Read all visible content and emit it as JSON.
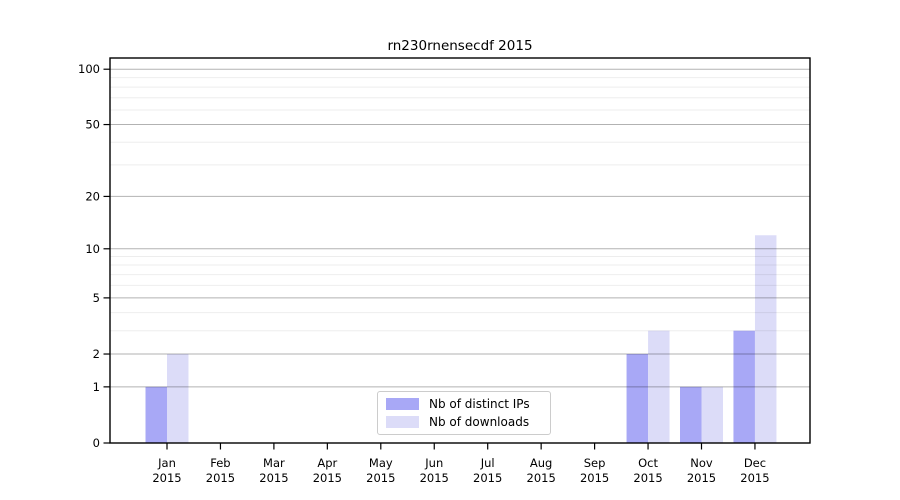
{
  "chart_data": {
    "type": "bar",
    "title": "rn230rnensecdf 2015",
    "categories": [
      "Jan 2015",
      "Feb 2015",
      "Mar 2015",
      "Apr 2015",
      "May 2015",
      "Jun 2015",
      "Jul 2015",
      "Aug 2015",
      "Sep 2015",
      "Oct 2015",
      "Nov 2015",
      "Dec 2015"
    ],
    "series": [
      {
        "name": "Nb of distinct IPs",
        "color": "#a8a8f6",
        "values": [
          1,
          0,
          0,
          0,
          0,
          0,
          0,
          0,
          0,
          2,
          1,
          3
        ]
      },
      {
        "name": "Nb of downloads",
        "color": "#dcdcf8",
        "values": [
          2,
          0,
          0,
          0,
          0,
          0,
          0,
          0,
          0,
          3,
          1,
          12
        ]
      }
    ],
    "yscale": "log1p",
    "yticks": [
      0,
      1,
      2,
      5,
      10,
      20,
      50,
      100
    ],
    "minor_yticks": [
      3,
      4,
      6,
      7,
      8,
      9,
      30,
      40,
      60,
      70,
      80,
      90
    ],
    "ylim": [
      0,
      115
    ],
    "xlabel": "",
    "ylabel": "",
    "grid": true,
    "legend_position": "lower center"
  }
}
